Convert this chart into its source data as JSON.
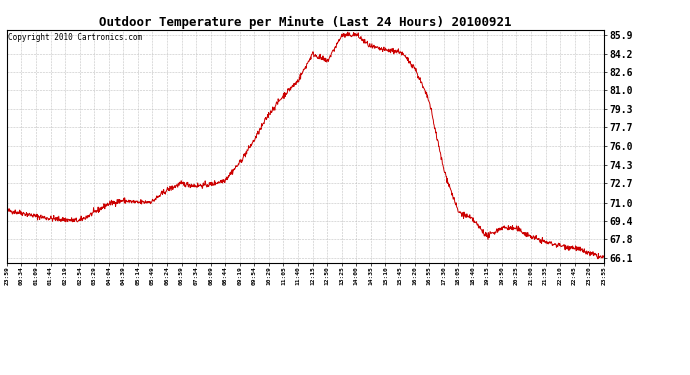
{
  "title": "Outdoor Temperature per Minute (Last 24 Hours) 20100921",
  "copyright_text": "Copyright 2010 Cartronics.com",
  "line_color": "#cc0000",
  "background_color": "#ffffff",
  "grid_color": "#bbbbbb",
  "ylim": [
    65.7,
    86.3
  ],
  "yticks": [
    66.1,
    67.8,
    69.4,
    71.0,
    72.7,
    74.3,
    76.0,
    77.7,
    79.3,
    81.0,
    82.6,
    84.2,
    85.9
  ],
  "xtick_labels": [
    "23:59",
    "00:34",
    "01:09",
    "01:44",
    "02:19",
    "02:54",
    "03:29",
    "04:04",
    "04:39",
    "05:14",
    "05:49",
    "06:24",
    "06:59",
    "07:34",
    "08:09",
    "08:44",
    "09:19",
    "09:54",
    "10:29",
    "11:05",
    "11:40",
    "12:15",
    "12:50",
    "13:25",
    "14:00",
    "14:35",
    "15:10",
    "15:45",
    "16:20",
    "16:55",
    "17:30",
    "18:05",
    "18:40",
    "19:15",
    "19:50",
    "20:25",
    "21:00",
    "21:35",
    "22:10",
    "22:45",
    "23:20",
    "23:55"
  ],
  "key_times": [
    0,
    0.583,
    1.167,
    1.733,
    2.317,
    2.9,
    3.483,
    4.067,
    4.65,
    5.233,
    5.817,
    6.4,
    6.983,
    7.567,
    8.15,
    8.733,
    9.317,
    9.9,
    10.483,
    11.083,
    11.667,
    12.25,
    12.833,
    13.417,
    14.0,
    14.583,
    15.167,
    15.75,
    16.333,
    16.917,
    17.5,
    18.083,
    18.667,
    19.25,
    19.833,
    20.417,
    21.0,
    21.583,
    22.167,
    22.75,
    23.333,
    23.917
  ],
  "key_temps": [
    70.3,
    70.1,
    69.8,
    69.6,
    69.5,
    69.4,
    70.1,
    70.9,
    71.2,
    71.0,
    71.1,
    72.1,
    72.7,
    72.5,
    72.6,
    73.0,
    74.5,
    76.5,
    78.8,
    80.5,
    81.8,
    84.2,
    83.5,
    85.8,
    85.9,
    84.8,
    84.5,
    84.4,
    83.0,
    80.0,
    74.0,
    70.2,
    69.5,
    68.0,
    68.8,
    68.7,
    68.0,
    67.5,
    67.2,
    67.0,
    66.5,
    66.1
  ],
  "noise_std": 0.12,
  "noise_seed": 42,
  "title_fontsize": 9,
  "ytick_fontsize": 7,
  "xtick_fontsize": 4.5,
  "copyright_fontsize": 5.5,
  "line_width": 0.7
}
